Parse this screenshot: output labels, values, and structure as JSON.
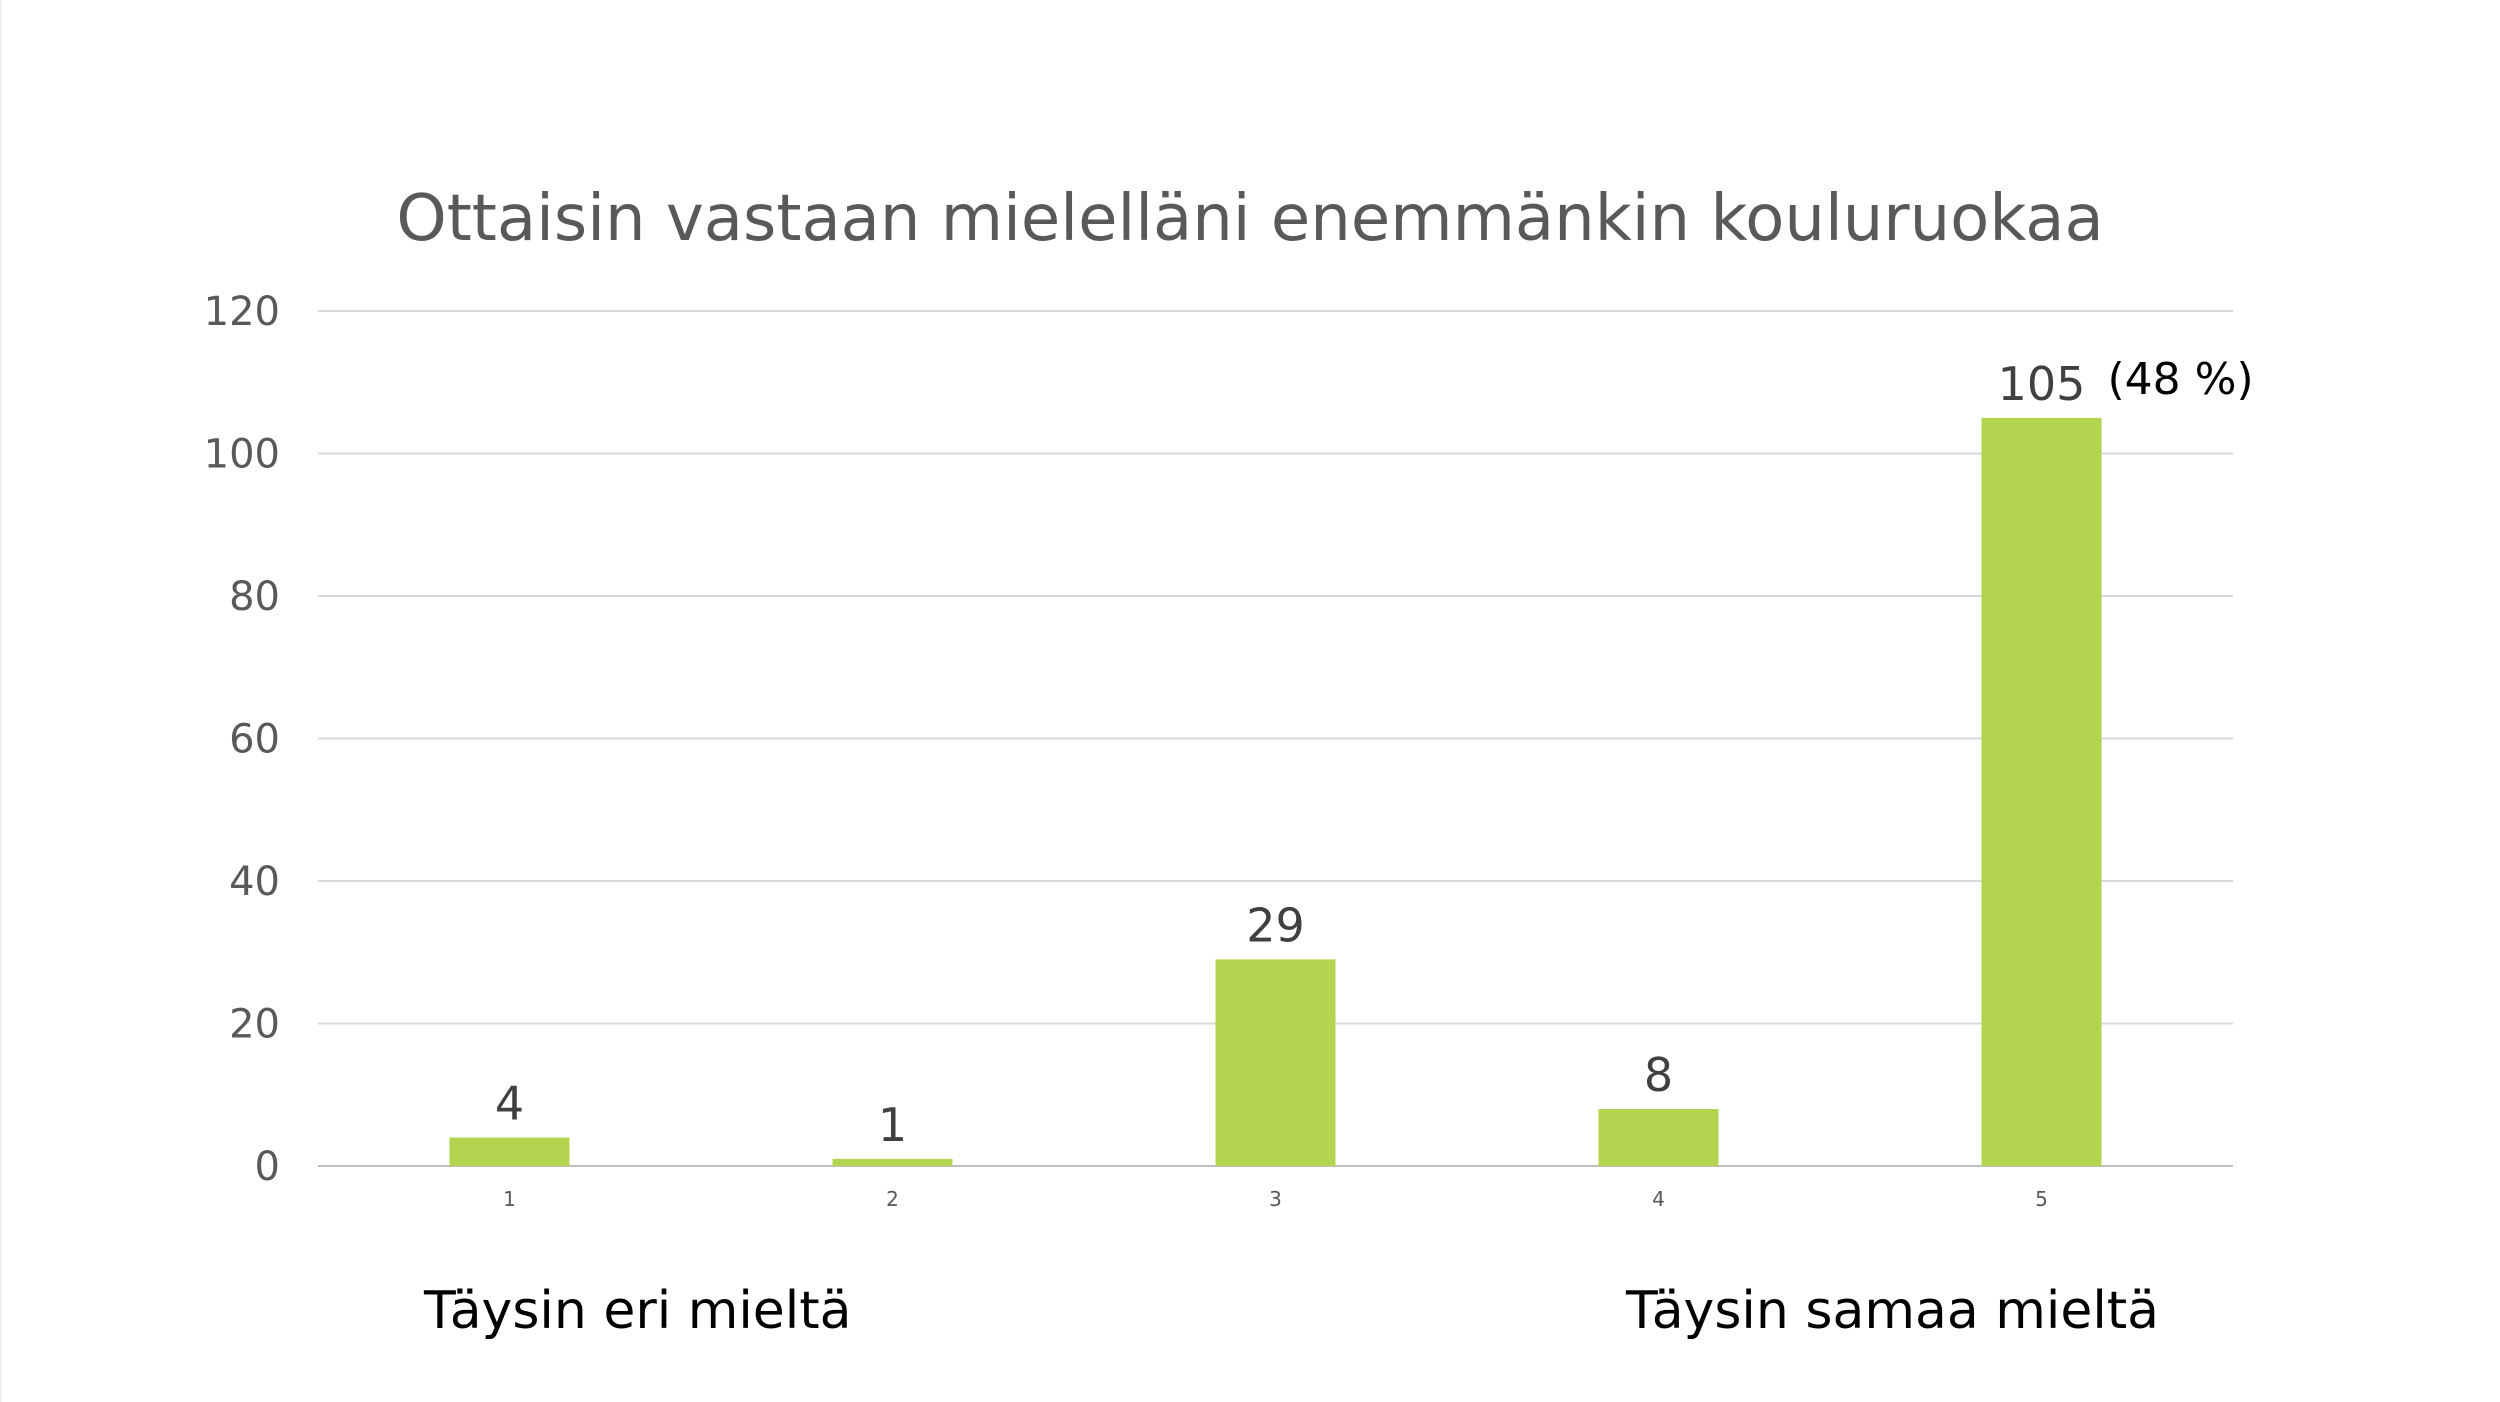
{
  "chart_data": {
    "type": "bar",
    "title": "Ottaisin vastaan mielelläni enemmänkin kouluruokaa",
    "categories": [
      "1",
      "2",
      "3",
      "4",
      "5"
    ],
    "values": [
      4,
      1,
      29,
      8,
      105
    ],
    "data_labels": [
      "4",
      "1",
      "29",
      "8",
      "105"
    ],
    "ylim": [
      0,
      120
    ],
    "yticks": [
      0,
      20,
      40,
      60,
      80,
      100,
      120
    ],
    "grid": true,
    "bar_color": "#b3d44f",
    "annotations": [
      {
        "category": "5",
        "text": "(48 %)"
      }
    ]
  },
  "scale_labels": {
    "low": "Täysin eri mieltä",
    "high": "Täysin samaa mieltä"
  }
}
